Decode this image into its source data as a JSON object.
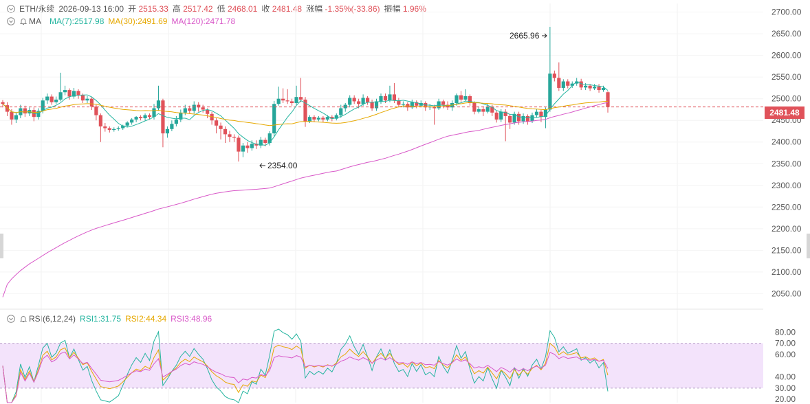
{
  "header": {
    "symbol": "ETH/永续",
    "datetime": "2026-09-13 16:00",
    "open_label": "开",
    "open_value": "2515.33",
    "high_label": "高",
    "high_value": "2517.42",
    "low_label": "低",
    "low_value": "2468.01",
    "close_label": "收",
    "close_value": "2481.48",
    "change_label": "涨幅",
    "change_value": "-1.35%(-33.86)",
    "amp_label": "振幅",
    "amp_value": "1.96%"
  },
  "ma_row": {
    "title": "MA",
    "ma7": "MA(7):2517.98",
    "ma30": "MA(30):2491.69",
    "ma120": "MA(120):2471.78"
  },
  "rsi_row": {
    "title": "RSI(6,12,24)",
    "rsi1": "RSI1:31.75",
    "rsi2": "RSI2:44.34",
    "rsi3": "RSI3:48.96"
  },
  "current_price": "2481.48",
  "annotations": {
    "high": "2665.96",
    "low": "2354.00"
  },
  "price_axis": [
    "2700.00",
    "2650.00",
    "2600.00",
    "2550.00",
    "2500.00",
    "2450.00",
    "2400.00",
    "2350.00",
    "2300.00",
    "2250.00",
    "2200.00",
    "2150.00",
    "2100.00",
    "2050.00"
  ],
  "rsi_axis": [
    "80.00",
    "70.00",
    "60.00",
    "40.00",
    "30.00",
    "20.00"
  ],
  "colors": {
    "up": "#26a69a",
    "down": "#e0525a",
    "ma7": "#26b5a0",
    "ma30": "#e6a800",
    "ma120": "#d858c8",
    "rsi_band": "#f3e3fb"
  },
  "chart_data": {
    "type": "candlestick",
    "y_range": [
      2030,
      2720
    ],
    "rsi_range": [
      17,
      87
    ],
    "rsi_band": [
      30,
      70
    ],
    "candles": [
      [
        2492,
        2488,
        2497,
        2480
      ],
      [
        2485,
        2470,
        2492,
        2460
      ],
      [
        2470,
        2452,
        2476,
        2440
      ],
      [
        2452,
        2462,
        2468,
        2444
      ],
      [
        2462,
        2478,
        2486,
        2455
      ],
      [
        2478,
        2466,
        2484,
        2458
      ],
      [
        2466,
        2474,
        2480,
        2460
      ],
      [
        2474,
        2458,
        2480,
        2448
      ],
      [
        2458,
        2472,
        2478,
        2452
      ],
      [
        2472,
        2496,
        2502,
        2466
      ],
      [
        2496,
        2505,
        2512,
        2488
      ],
      [
        2505,
        2492,
        2510,
        2486
      ],
      [
        2492,
        2498,
        2505,
        2488
      ],
      [
        2498,
        2515,
        2560,
        2494
      ],
      [
        2515,
        2520,
        2530,
        2508
      ],
      [
        2520,
        2505,
        2524,
        2498
      ],
      [
        2505,
        2518,
        2525,
        2500
      ],
      [
        2518,
        2508,
        2522,
        2500
      ],
      [
        2508,
        2496,
        2512,
        2490
      ],
      [
        2496,
        2500,
        2506,
        2490
      ],
      [
        2500,
        2482,
        2504,
        2474
      ],
      [
        2482,
        2462,
        2486,
        2450
      ],
      [
        2462,
        2436,
        2466,
        2400
      ],
      [
        2436,
        2432,
        2444,
        2424
      ],
      [
        2432,
        2428,
        2436,
        2422
      ],
      [
        2428,
        2430,
        2434,
        2424
      ],
      [
        2430,
        2432,
        2436,
        2426
      ],
      [
        2432,
        2438,
        2440,
        2428
      ],
      [
        2438,
        2445,
        2448,
        2434
      ],
      [
        2445,
        2452,
        2455,
        2440
      ],
      [
        2452,
        2458,
        2460,
        2446
      ],
      [
        2458,
        2455,
        2462,
        2450
      ],
      [
        2455,
        2462,
        2466,
        2450
      ],
      [
        2462,
        2458,
        2466,
        2452
      ],
      [
        2458,
        2478,
        2488,
        2452
      ],
      [
        2478,
        2496,
        2530,
        2472
      ],
      [
        2496,
        2420,
        2500,
        2388
      ],
      [
        2420,
        2430,
        2436,
        2410
      ],
      [
        2430,
        2442,
        2450,
        2425
      ],
      [
        2442,
        2452,
        2460,
        2436
      ],
      [
        2452,
        2468,
        2475,
        2446
      ],
      [
        2468,
        2478,
        2486,
        2462
      ],
      [
        2478,
        2472,
        2484,
        2466
      ],
      [
        2472,
        2486,
        2494,
        2466
      ],
      [
        2486,
        2480,
        2492,
        2470
      ],
      [
        2480,
        2475,
        2486,
        2468
      ],
      [
        2475,
        2465,
        2478,
        2455
      ],
      [
        2465,
        2450,
        2470,
        2440
      ],
      [
        2450,
        2438,
        2455,
        2420
      ],
      [
        2438,
        2430,
        2445,
        2406
      ],
      [
        2430,
        2418,
        2436,
        2398
      ],
      [
        2418,
        2412,
        2426,
        2400
      ],
      [
        2412,
        2410,
        2418,
        2400
      ],
      [
        2410,
        2378,
        2415,
        2355
      ],
      [
        2378,
        2392,
        2398,
        2365
      ],
      [
        2392,
        2386,
        2400,
        2375
      ],
      [
        2386,
        2396,
        2404,
        2380
      ],
      [
        2396,
        2392,
        2404,
        2384
      ],
      [
        2392,
        2405,
        2412,
        2386
      ],
      [
        2405,
        2398,
        2410,
        2390
      ],
      [
        2398,
        2420,
        2425,
        2392
      ],
      [
        2420,
        2488,
        2495,
        2412
      ],
      [
        2488,
        2500,
        2528,
        2484
      ],
      [
        2500,
        2496,
        2524,
        2490
      ],
      [
        2496,
        2494,
        2522,
        2488
      ],
      [
        2494,
        2490,
        2500,
        2484
      ],
      [
        2490,
        2504,
        2530,
        2486
      ],
      [
        2504,
        2498,
        2548,
        2492
      ],
      [
        2498,
        2448,
        2504,
        2435
      ],
      [
        2448,
        2458,
        2462,
        2444
      ],
      [
        2458,
        2452,
        2462,
        2446
      ],
      [
        2452,
        2456,
        2460,
        2448
      ],
      [
        2456,
        2452,
        2460,
        2446
      ],
      [
        2452,
        2458,
        2462,
        2448
      ],
      [
        2458,
        2454,
        2462,
        2448
      ],
      [
        2454,
        2462,
        2466,
        2450
      ],
      [
        2462,
        2478,
        2486,
        2456
      ],
      [
        2478,
        2486,
        2490,
        2470
      ],
      [
        2486,
        2502,
        2508,
        2480
      ],
      [
        2502,
        2494,
        2508,
        2488
      ],
      [
        2494,
        2488,
        2500,
        2478
      ],
      [
        2488,
        2502,
        2510,
        2484
      ],
      [
        2502,
        2492,
        2506,
        2486
      ],
      [
        2492,
        2478,
        2498,
        2472
      ],
      [
        2478,
        2494,
        2500,
        2472
      ],
      [
        2494,
        2506,
        2512,
        2488
      ],
      [
        2506,
        2496,
        2512,
        2490
      ],
      [
        2496,
        2510,
        2530,
        2492
      ],
      [
        2510,
        2496,
        2536,
        2490
      ],
      [
        2496,
        2486,
        2502,
        2480
      ],
      [
        2486,
        2488,
        2494,
        2480
      ],
      [
        2488,
        2480,
        2492,
        2472
      ],
      [
        2480,
        2492,
        2498,
        2476
      ],
      [
        2492,
        2484,
        2496,
        2478
      ],
      [
        2484,
        2490,
        2496,
        2480
      ],
      [
        2490,
        2480,
        2494,
        2472
      ],
      [
        2480,
        2482,
        2488,
        2474
      ],
      [
        2482,
        2478,
        2486,
        2440
      ],
      [
        2478,
        2494,
        2500,
        2474
      ],
      [
        2494,
        2486,
        2498,
        2478
      ],
      [
        2486,
        2480,
        2494,
        2474
      ],
      [
        2480,
        2490,
        2496,
        2472
      ],
      [
        2490,
        2508,
        2512,
        2484
      ],
      [
        2508,
        2498,
        2518,
        2492
      ],
      [
        2498,
        2506,
        2522,
        2494
      ],
      [
        2506,
        2490,
        2510,
        2484
      ],
      [
        2490,
        2470,
        2494,
        2464
      ],
      [
        2470,
        2476,
        2482,
        2466
      ],
      [
        2476,
        2470,
        2482,
        2460
      ],
      [
        2470,
        2482,
        2488,
        2466
      ],
      [
        2482,
        2468,
        2486,
        2460
      ],
      [
        2468,
        2452,
        2472,
        2445
      ],
      [
        2452,
        2470,
        2476,
        2446
      ],
      [
        2470,
        2460,
        2476,
        2402
      ],
      [
        2460,
        2445,
        2465,
        2430
      ],
      [
        2445,
        2465,
        2470,
        2440
      ],
      [
        2465,
        2448,
        2470,
        2440
      ],
      [
        2448,
        2460,
        2466,
        2442
      ],
      [
        2460,
        2448,
        2464,
        2440
      ],
      [
        2448,
        2462,
        2468,
        2444
      ],
      [
        2462,
        2470,
        2476,
        2456
      ],
      [
        2470,
        2458,
        2474,
        2446
      ],
      [
        2458,
        2475,
        2480,
        2432
      ],
      [
        2475,
        2558,
        2666,
        2470
      ],
      [
        2558,
        2548,
        2565,
        2540
      ],
      [
        2548,
        2525,
        2584,
        2518
      ],
      [
        2525,
        2540,
        2545,
        2518
      ],
      [
        2540,
        2530,
        2545,
        2524
      ],
      [
        2530,
        2535,
        2540,
        2525
      ],
      [
        2535,
        2540,
        2548,
        2530
      ],
      [
        2540,
        2526,
        2546,
        2520
      ],
      [
        2526,
        2530,
        2536,
        2520
      ],
      [
        2530,
        2524,
        2534,
        2518
      ],
      [
        2524,
        2528,
        2534,
        2520
      ],
      [
        2528,
        2520,
        2534,
        2514
      ],
      [
        2520,
        2525,
        2530,
        2516
      ],
      [
        2515,
        2481,
        2517,
        2468
      ]
    ],
    "series": [
      {
        "name": "MA(7)"
      },
      {
        "name": "MA(30)"
      },
      {
        "name": "MA(120)"
      },
      {
        "name": "RSI1"
      },
      {
        "name": "RSI2"
      },
      {
        "name": "RSI3"
      }
    ]
  }
}
